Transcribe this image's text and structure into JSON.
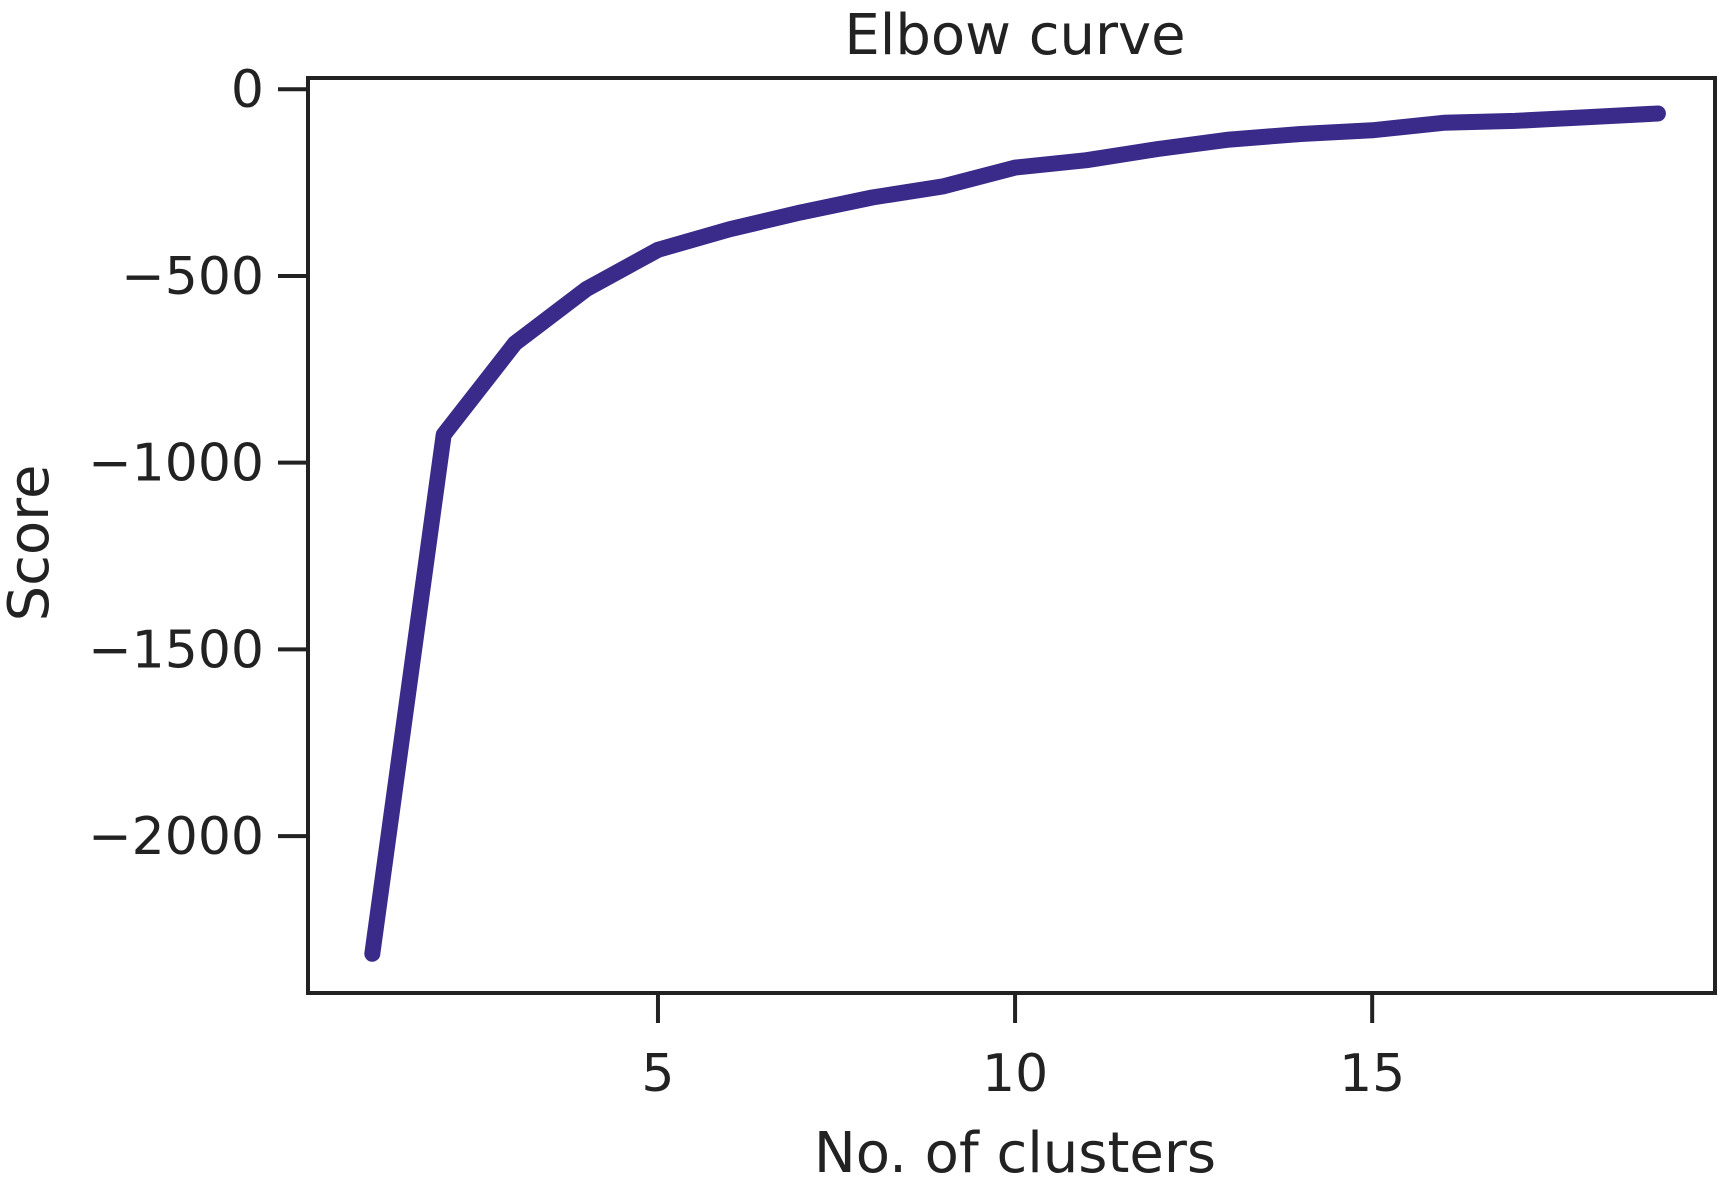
{
  "chart_data": {
    "type": "line",
    "title": "Elbow curve",
    "xlabel": "No. of clusters",
    "ylabel": "Score",
    "xlim": [
      0.1,
      19.8
    ],
    "ylim": [
      -2420,
      30
    ],
    "x_ticks": [
      {
        "value": 5,
        "label": "5"
      },
      {
        "value": 10,
        "label": "10"
      },
      {
        "value": 15,
        "label": "15"
      }
    ],
    "y_ticks": [
      {
        "value": 0,
        "label": "0"
      },
      {
        "value": -500,
        "label": "−500"
      },
      {
        "value": -1000,
        "label": "−1000"
      },
      {
        "value": -1500,
        "label": "−1500"
      },
      {
        "value": -2000,
        "label": "−2000"
      }
    ],
    "grid": false,
    "legend": "none",
    "series": [
      {
        "color": "#3a2a8a",
        "x": [
          1,
          2,
          3,
          4,
          5,
          6,
          7,
          8,
          9,
          10,
          11,
          12,
          13,
          14,
          15,
          16,
          17,
          18,
          19
        ],
        "y": [
          -2315,
          -925,
          -680,
          -535,
          -430,
          -375,
          -330,
          -290,
          -260,
          -210,
          -190,
          -160,
          -135,
          -120,
          -110,
          -90,
          -85,
          -75,
          -65
        ]
      }
    ]
  }
}
